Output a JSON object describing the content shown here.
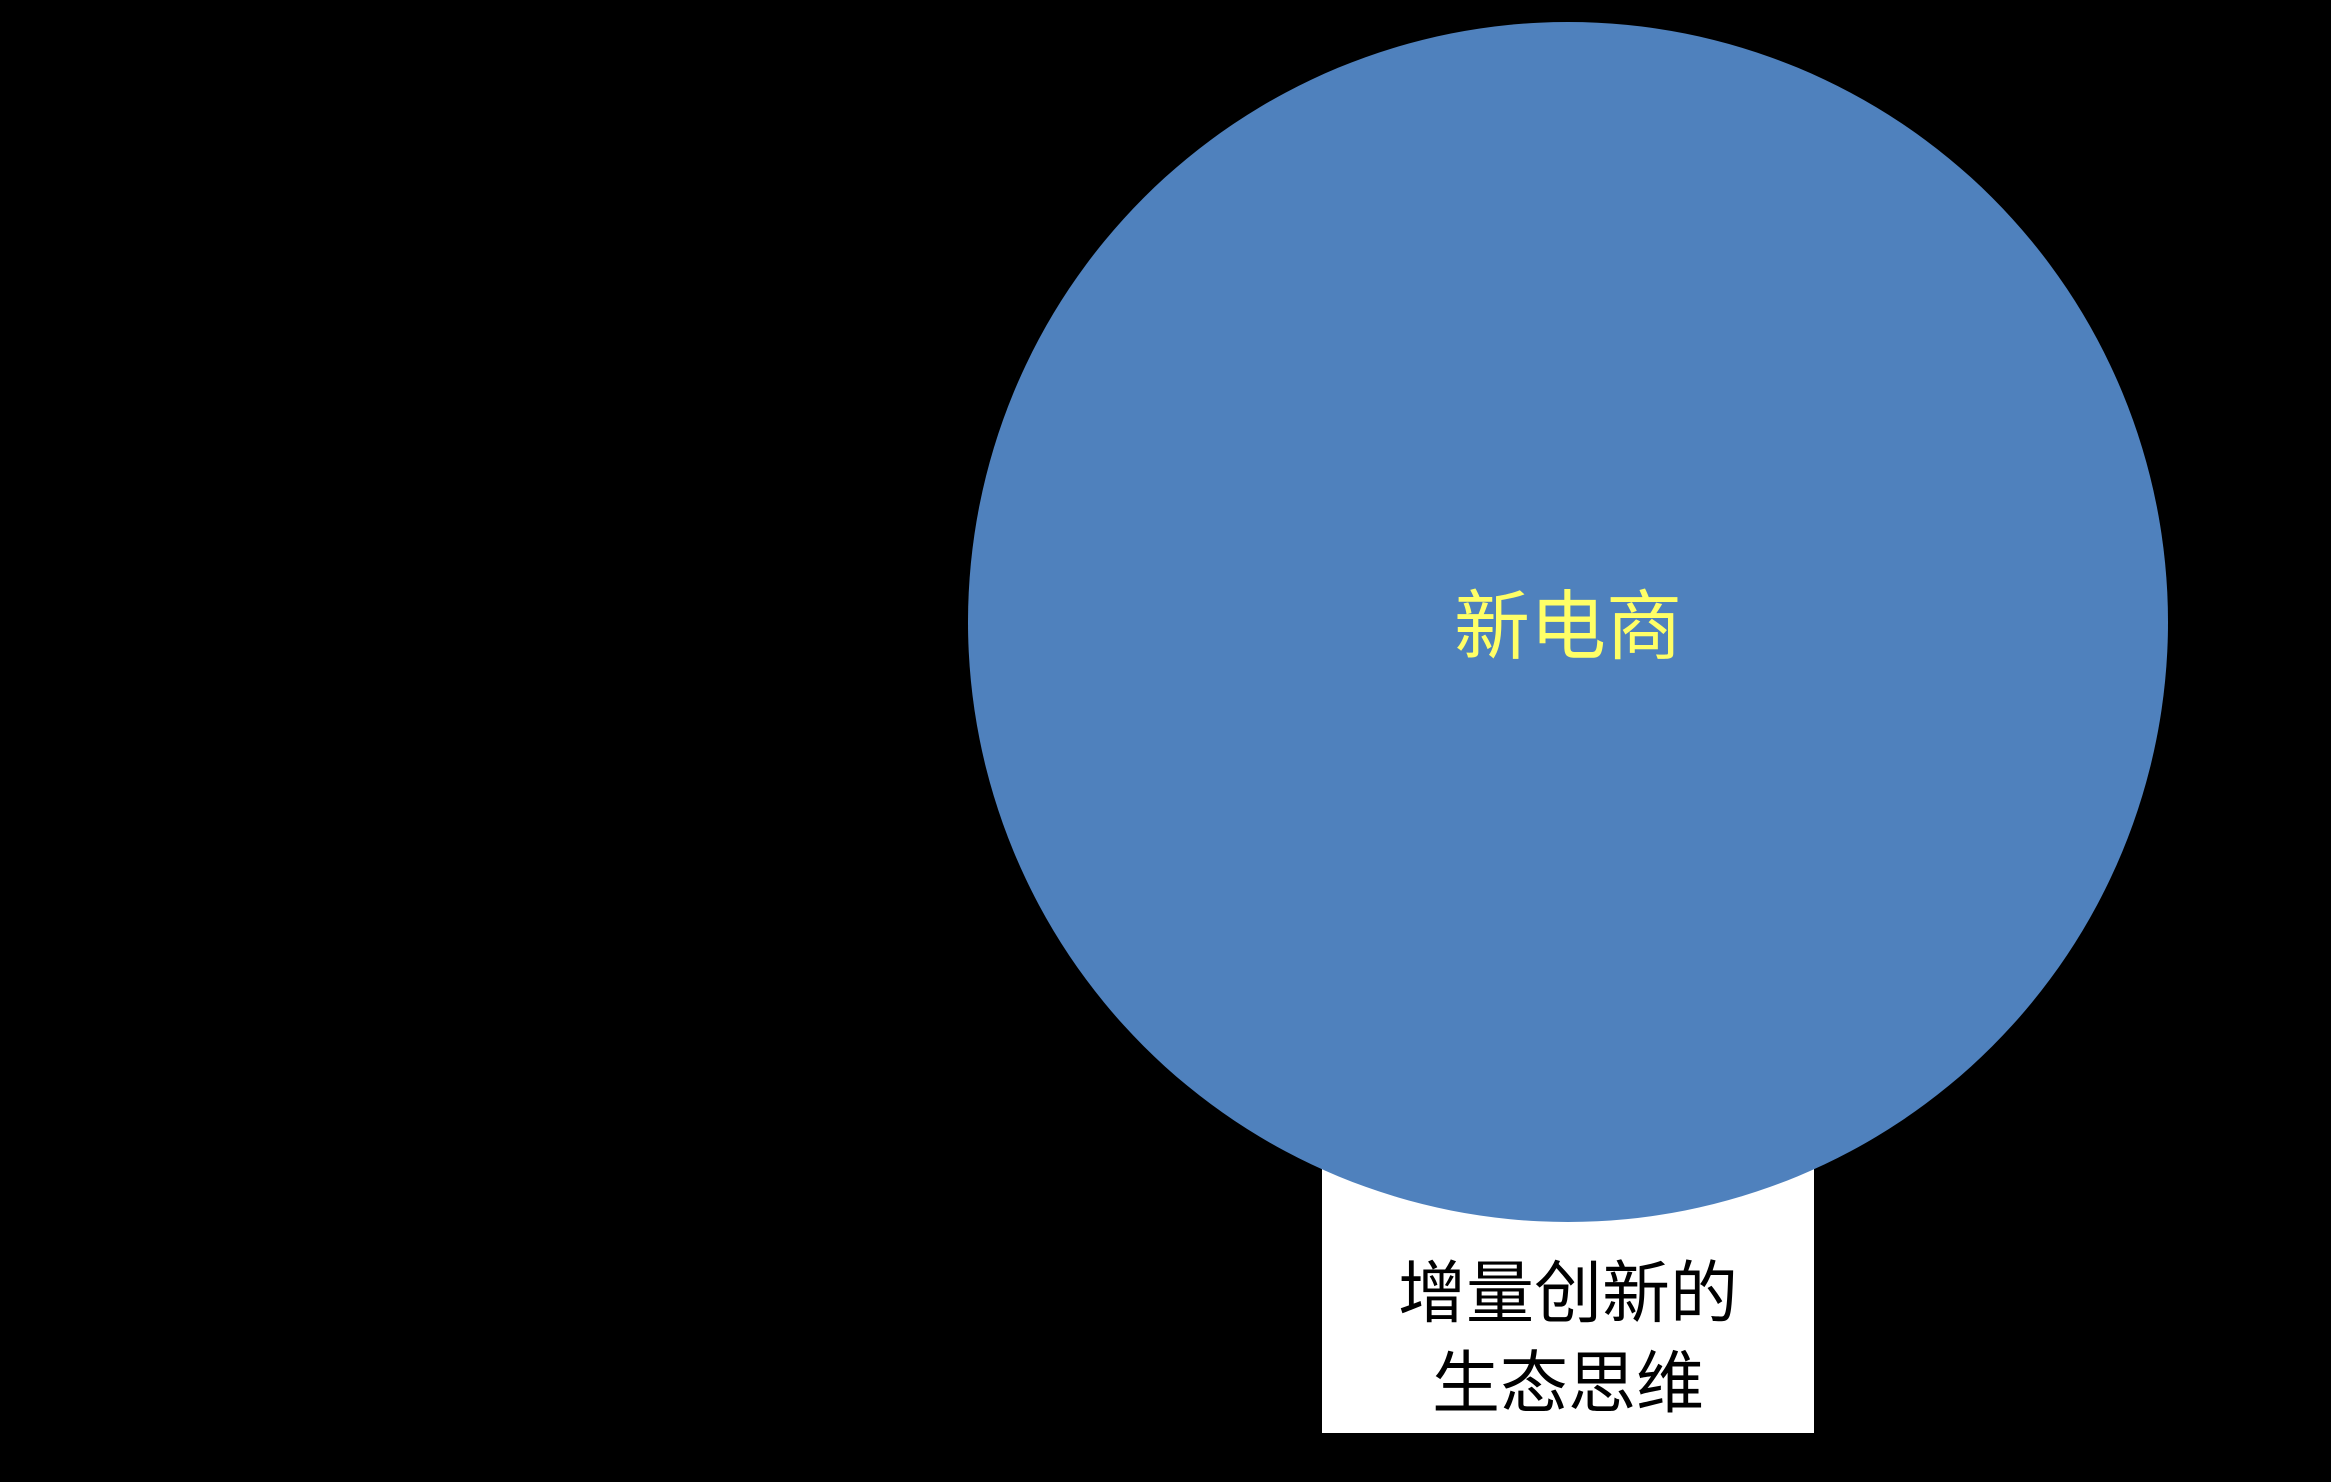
{
  "diagram": {
    "circle": {
      "label": "新电商",
      "fill_color": "#4f81bd",
      "text_color": "#ffff66"
    },
    "caption_box": {
      "lines": [
        "增量创新的",
        "生态思维"
      ],
      "fill_color": "#ffffff",
      "text_color": "#000000"
    },
    "background_color": "#000000"
  }
}
